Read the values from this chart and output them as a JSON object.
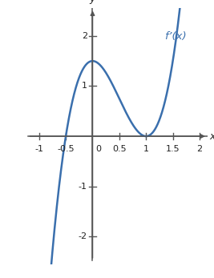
{
  "title": "f’(x)",
  "title_color": "#3a6fad",
  "curve_color": "#3a6fad",
  "curve_linewidth": 1.8,
  "xlim": [
    -1.25,
    2.15
  ],
  "ylim": [
    -2.55,
    2.55
  ],
  "xticks": [
    -1,
    -0.5,
    0.5,
    1,
    1.5,
    2
  ],
  "yticks": [
    -2,
    -1,
    1,
    2
  ],
  "xlabel": "x",
  "ylabel": "y",
  "background_color": "#ffffff",
  "x_start": -0.88,
  "x_end": 1.73,
  "axis_color": "#555555",
  "label_fontsize": 9,
  "tick_fontsize": 8
}
